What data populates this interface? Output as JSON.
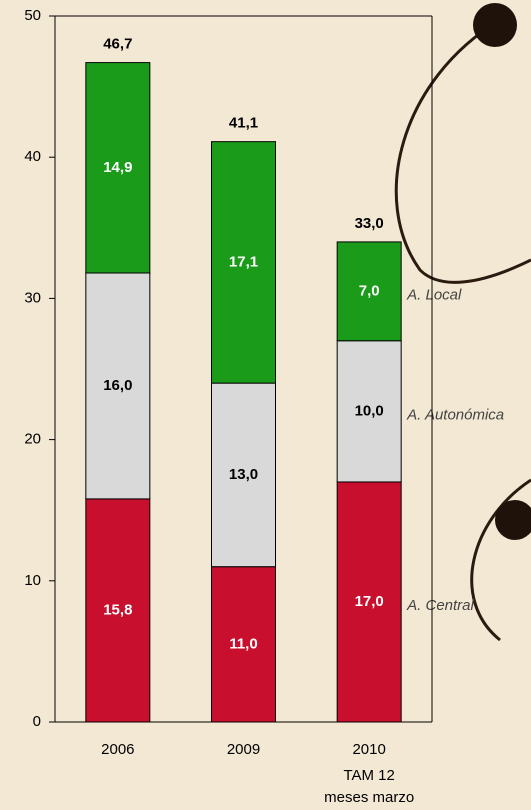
{
  "chart_data": {
    "type": "stacked-bar",
    "categories": [
      "2006",
      "2009",
      "2010"
    ],
    "category_notes": [
      null,
      null,
      [
        "TAM 12",
        "meses marzo"
      ]
    ],
    "series": [
      {
        "name": "A. Central",
        "color": "#c8102e",
        "label_color": "#ffffff",
        "values": [
          15.8,
          11.0,
          17.0
        ],
        "value_labels": [
          "15,8",
          "11,0",
          "17,0"
        ]
      },
      {
        "name": "A. Autonómica",
        "color": "#d9d9d9",
        "label_color": "#000000",
        "values": [
          16.0,
          13.0,
          10.0
        ],
        "value_labels": [
          "16,0",
          "13,0",
          "10,0"
        ]
      },
      {
        "name": "A. Local",
        "color": "#1a9c1a",
        "label_color": "#ffffff",
        "values": [
          14.9,
          17.1,
          7.0
        ],
        "value_labels": [
          "14,9",
          "17,1",
          "7,0"
        ]
      }
    ],
    "totals": [
      46.7,
      41.1,
      33.0
    ],
    "total_labels": [
      "46,7",
      "41,1",
      "33,0"
    ],
    "ylim": [
      0,
      50
    ],
    "yticks": [
      0,
      10,
      20,
      30,
      40,
      50
    ],
    "grid": false
  }
}
